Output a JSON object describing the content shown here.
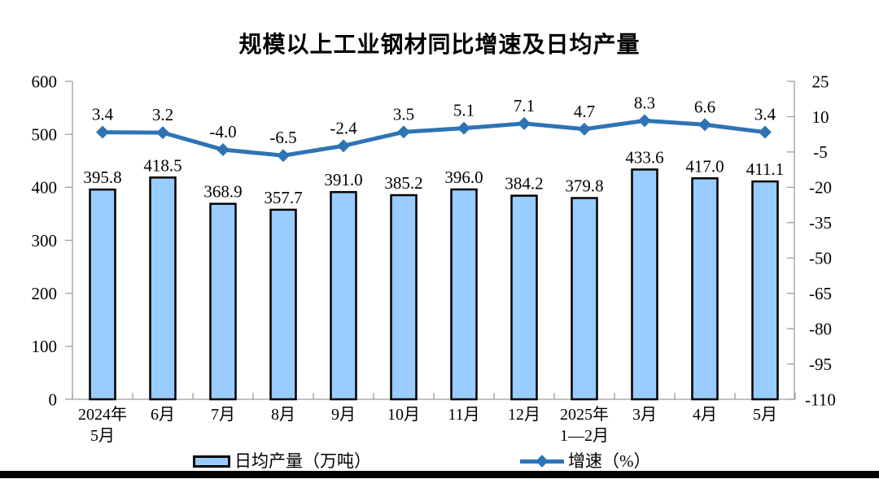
{
  "page": {
    "background": "#FFFFFF",
    "bottom_divider_color": "#000000"
  },
  "chart_data": {
    "type": "bar+line",
    "title": "规模以上工业钢材同比增速及日均产量",
    "categories": [
      [
        "2024年",
        "5月"
      ],
      [
        "6月"
      ],
      [
        "7月"
      ],
      [
        "8月"
      ],
      [
        "9月"
      ],
      [
        "10月"
      ],
      [
        "11月"
      ],
      [
        "12月"
      ],
      [
        "2025年",
        "1—2月"
      ],
      [
        "3月"
      ],
      [
        "4月"
      ],
      [
        "5月"
      ]
    ],
    "series": [
      {
        "name": "日均产量（万吨）",
        "type": "bar",
        "axis": "left",
        "values": [
          395.8,
          418.5,
          368.9,
          357.7,
          391.0,
          385.2,
          396.0,
          384.2,
          379.8,
          433.6,
          417.0,
          411.1
        ],
        "fill": "#99CCFF",
        "stroke": "#000000"
      },
      {
        "name": "增速（%）",
        "type": "line",
        "axis": "right",
        "values": [
          3.4,
          3.2,
          -4.0,
          -6.5,
          -2.4,
          3.5,
          5.1,
          7.1,
          4.7,
          8.3,
          6.6,
          3.4
        ],
        "color": "#2E74B5",
        "marker": "diamond"
      }
    ],
    "left_axis": {
      "min": 0,
      "max": 600,
      "tick_step": 100,
      "tick_labels": [
        "600",
        "500",
        "400",
        "300",
        "200",
        "100",
        "0"
      ]
    },
    "right_axis": {
      "min": -110,
      "max": 25,
      "tick_step": 15,
      "tick_labels": [
        "25",
        "10",
        "-5",
        "-20",
        "-35",
        "-50",
        "-65",
        "-80",
        "-95",
        "-110"
      ]
    },
    "grid": false,
    "legend_position": "bottom",
    "data_labels_decimals": 1,
    "axis_color": "#9E9E9E",
    "text_color": "#000000"
  }
}
